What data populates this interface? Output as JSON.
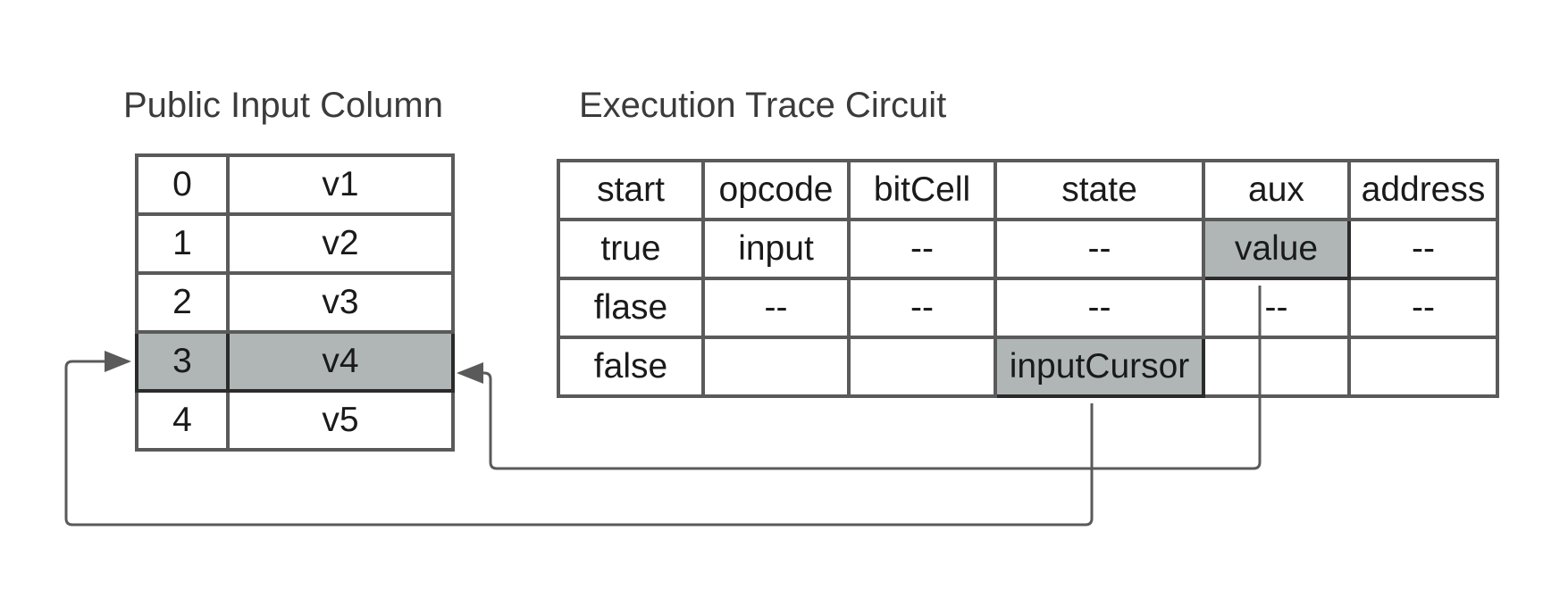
{
  "public_input": {
    "title": "Public Input Column",
    "rows": [
      {
        "index": "0",
        "value": "v1"
      },
      {
        "index": "1",
        "value": "v2"
      },
      {
        "index": "2",
        "value": "v3"
      },
      {
        "index": "3",
        "value": "v4"
      },
      {
        "index": "4",
        "value": "v5"
      }
    ],
    "highlighted_row": 3
  },
  "trace": {
    "title": "Execution Trace Circuit",
    "headers": [
      "start",
      "opcode",
      "bitCell",
      "state",
      "aux",
      "address"
    ],
    "rows": [
      [
        "true",
        "input",
        "--",
        "--",
        "value",
        "--"
      ],
      [
        "flase",
        "--",
        "--",
        "--",
        "--",
        "--"
      ],
      [
        "false",
        "",
        "",
        "inputCursor",
        "",
        ""
      ]
    ],
    "highlighted_cells": [
      {
        "row": 0,
        "col": 4
      },
      {
        "row": 2,
        "col": 3
      }
    ]
  },
  "colors": {
    "highlight_fill": "#b0b6b6",
    "grid_line": "#5a5a5a",
    "connector": "#5a5a5a"
  }
}
